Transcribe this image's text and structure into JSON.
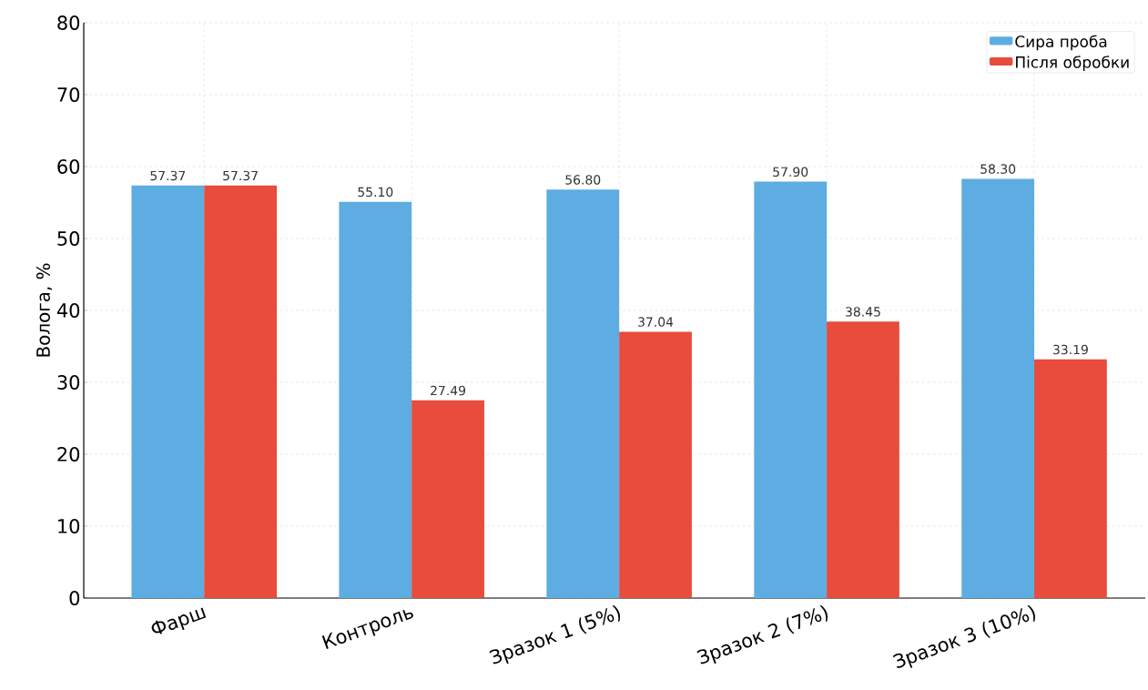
{
  "chart_data": {
    "type": "bar",
    "ylabel": "Вологa, %",
    "categories": [
      "Фарш",
      "Контроль",
      "Зразок 1 (5%)",
      "Зразок 2 (7%)",
      "Зразок 3 (10%)"
    ],
    "series": [
      {
        "name": "Сира проба",
        "color": "#5dade2",
        "values": [
          57.37,
          55.1,
          56.8,
          57.9,
          58.3
        ],
        "value_labels": [
          "57.37",
          "55.10",
          "56.80",
          "57.90",
          "58.30"
        ]
      },
      {
        "name": "Після обробки",
        "color": "#e74c3c",
        "values": [
          57.37,
          27.49,
          37.04,
          38.45,
          33.19
        ],
        "value_labels": [
          "57.37",
          "27.49",
          "37.04",
          "38.45",
          "33.19"
        ]
      }
    ],
    "ylim": [
      0,
      80
    ],
    "yticks": [
      0,
      10,
      20,
      30,
      40,
      50,
      60,
      70,
      80
    ],
    "grid": true,
    "legend": "top right"
  }
}
